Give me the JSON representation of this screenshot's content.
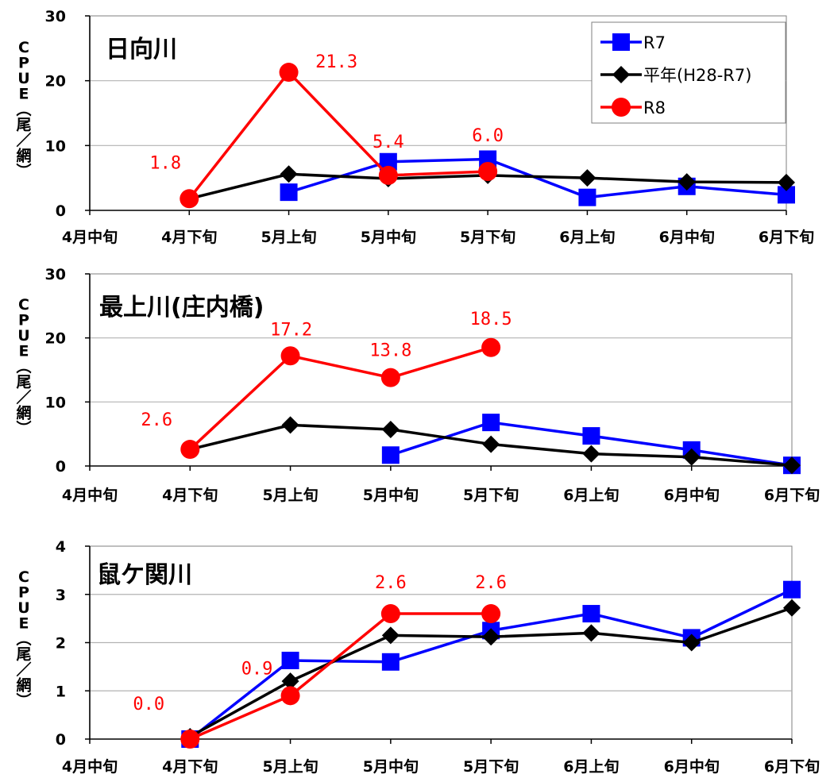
{
  "chart_data": [
    {
      "type": "line",
      "title": "日向川",
      "categories": [
        "4月中旬",
        "4月下旬",
        "5月上旬",
        "5月中旬",
        "5月下旬",
        "6月上旬",
        "6月中旬",
        "6月下旬"
      ],
      "ylabel": "CPUE（尾／網）",
      "ylim": [
        0,
        30
      ],
      "yticks": [
        0,
        10,
        20,
        30
      ],
      "grid": true,
      "legend_position": "top-right",
      "series": [
        {
          "name": "R7",
          "color": "#0000ff",
          "marker": "square",
          "values": [
            null,
            null,
            2.8,
            7.5,
            7.9,
            2.0,
            3.7,
            2.4
          ]
        },
        {
          "name": "平年(H28-R7)",
          "color": "#000000",
          "marker": "diamond",
          "values": [
            null,
            1.8,
            5.6,
            4.9,
            5.4,
            5.0,
            4.4,
            4.3
          ]
        },
        {
          "name": "R8",
          "color": "#ff0000",
          "marker": "circle",
          "values": [
            null,
            1.8,
            21.3,
            5.4,
            6.0,
            null,
            null,
            null
          ]
        }
      ],
      "data_labels": [
        {
          "category": "4月下旬",
          "text": "1.8"
        },
        {
          "category": "5月上旬",
          "text": "21.3"
        },
        {
          "category": "5月中旬",
          "text": "5.4"
        },
        {
          "category": "5月下旬",
          "text": "6.0"
        }
      ]
    },
    {
      "type": "line",
      "title": "最上川(庄内橋)",
      "categories": [
        "4月中旬",
        "4月下旬",
        "5月上旬",
        "5月中旬",
        "5月下旬",
        "6月上旬",
        "6月中旬",
        "6月下旬"
      ],
      "ylabel": "CPUE（尾／網）",
      "ylim": [
        0,
        30
      ],
      "yticks": [
        0,
        10,
        20,
        30
      ],
      "grid": true,
      "series": [
        {
          "name": "R7",
          "color": "#0000ff",
          "marker": "square",
          "values": [
            null,
            null,
            null,
            1.7,
            6.8,
            4.7,
            2.5,
            0.1
          ]
        },
        {
          "name": "平年(H28-R7)",
          "color": "#000000",
          "marker": "diamond",
          "values": [
            null,
            2.6,
            6.4,
            5.7,
            3.4,
            1.9,
            1.4,
            0.1
          ]
        },
        {
          "name": "R8",
          "color": "#ff0000",
          "marker": "circle",
          "values": [
            null,
            2.6,
            17.2,
            13.8,
            18.5,
            null,
            null,
            null
          ]
        }
      ],
      "data_labels": [
        {
          "category": "4月下旬",
          "text": "2.6"
        },
        {
          "category": "5月上旬",
          "text": "17.2"
        },
        {
          "category": "5月中旬",
          "text": "13.8"
        },
        {
          "category": "5月下旬",
          "text": "18.5"
        }
      ]
    },
    {
      "type": "line",
      "title": "鼠ケ関川",
      "categories": [
        "4月中旬",
        "4月下旬",
        "5月上旬",
        "5月中旬",
        "5月下旬",
        "6月上旬",
        "6月中旬",
        "6月下旬"
      ],
      "ylabel": "CPUE（尾／網）",
      "ylim": [
        0,
        4
      ],
      "yticks": [
        0,
        1,
        2,
        3,
        4
      ],
      "grid": true,
      "series": [
        {
          "name": "R7",
          "color": "#0000ff",
          "marker": "square",
          "values": [
            null,
            0.0,
            1.63,
            1.6,
            2.25,
            2.6,
            2.1,
            3.1
          ]
        },
        {
          "name": "平年(H28-R7)",
          "color": "#000000",
          "marker": "diamond",
          "values": [
            null,
            0.05,
            1.2,
            2.15,
            2.12,
            2.2,
            2.0,
            2.72
          ]
        },
        {
          "name": "R8",
          "color": "#ff0000",
          "marker": "circle",
          "values": [
            null,
            0.0,
            0.9,
            2.6,
            2.6,
            null,
            null,
            null
          ]
        }
      ],
      "data_labels": [
        {
          "category": "4月下旬",
          "text": "0.0"
        },
        {
          "category": "5月上旬",
          "text": "0.9"
        },
        {
          "category": "5月中旬",
          "text": "2.6"
        },
        {
          "category": "5月下旬",
          "text": "2.6"
        }
      ]
    }
  ]
}
